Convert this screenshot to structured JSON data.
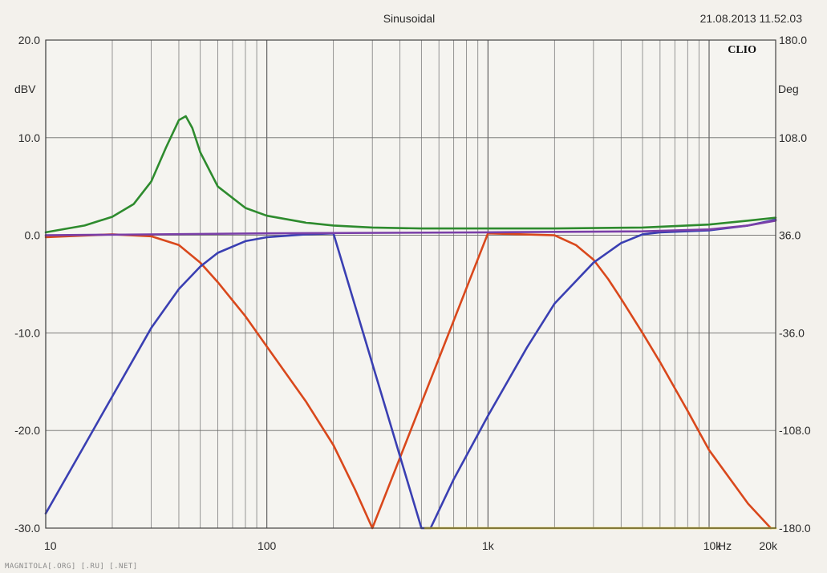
{
  "chart_data": {
    "type": "line",
    "title": "Sinusoidal",
    "timestamp": "21.08.2013 11.52.03",
    "brand": "CLIO",
    "watermark": "MAGNITOLA[.ORG] [.RU] [.NET]",
    "x_scale": "log",
    "xlim": [
      10,
      20000
    ],
    "ylim": [
      -30,
      20
    ],
    "y2lim": [
      -180,
      180
    ],
    "ylabel": "dBV",
    "y2label": "Deg",
    "xunit": "Hz",
    "grid": true,
    "x_tick_labels": [
      {
        "value": 10,
        "label": "10"
      },
      {
        "value": 100,
        "label": "100"
      },
      {
        "value": 1000,
        "label": "1k"
      },
      {
        "value": 10000,
        "label": "10k"
      },
      {
        "value": 20000,
        "label": "20k"
      }
    ],
    "y_ticks": [
      {
        "value": 20,
        "label": "20.0"
      },
      {
        "value": 10,
        "label": "10.0"
      },
      {
        "value": 0,
        "label": "0.0"
      },
      {
        "value": -10,
        "label": "-10.0"
      },
      {
        "value": -20,
        "label": "-20.0"
      },
      {
        "value": -30,
        "label": "-30.0"
      }
    ],
    "y2_ticks": [
      {
        "value": 180,
        "label": "180.0"
      },
      {
        "value": 108,
        "label": "108.0"
      },
      {
        "value": 36,
        "label": "36.0"
      },
      {
        "value": -36,
        "label": "-36.0"
      },
      {
        "value": -108,
        "label": "-108.0"
      },
      {
        "value": -180,
        "label": "-180.0"
      }
    ],
    "series": [
      {
        "color": "#2e8b2e",
        "x": [
          10,
          15,
          20,
          25,
          30,
          35,
          40,
          43,
          46,
          50,
          60,
          80,
          100,
          150,
          200,
          300,
          500,
          1000,
          2000,
          5000,
          10000,
          15000,
          20000
        ],
        "y": [
          0.3,
          1.0,
          1.9,
          3.2,
          5.5,
          9.0,
          11.8,
          12.2,
          11.0,
          8.5,
          5.0,
          2.8,
          2.0,
          1.3,
          1.0,
          0.8,
          0.7,
          0.7,
          0.7,
          0.8,
          1.1,
          1.5,
          1.8
        ]
      },
      {
        "color": "#d9481c",
        "x": [
          10,
          20,
          30,
          40,
          50,
          60,
          80,
          100,
          150,
          200,
          250,
          300,
          1000,
          2000,
          2500,
          3000,
          3500,
          4000,
          5000,
          6000,
          8000,
          10000,
          15000,
          19000
        ],
        "y": [
          -0.2,
          0.1,
          -0.1,
          -1.0,
          -2.8,
          -4.8,
          -8.3,
          -11.4,
          -17.0,
          -21.5,
          -26.0,
          -30.0,
          0.2,
          0.0,
          -1.0,
          -2.5,
          -4.5,
          -6.5,
          -10.0,
          -13.0,
          -18.0,
          -22.0,
          -27.5,
          -30.0
        ]
      },
      {
        "color": "#3a3fb2",
        "x": [
          10,
          15,
          20,
          30,
          40,
          50,
          60,
          80,
          100,
          150,
          200,
          500,
          550,
          700,
          1000,
          1500,
          2000,
          3000,
          4000,
          5000,
          6000,
          10000,
          15000,
          20000
        ],
        "y": [
          -28.5,
          -21.5,
          -16.5,
          -9.5,
          -5.5,
          -3.2,
          -1.8,
          -0.6,
          -0.2,
          0.1,
          0.2,
          -30.0,
          -30.0,
          -25.0,
          -18.5,
          -11.5,
          -7.0,
          -2.8,
          -0.8,
          0.1,
          0.3,
          0.5,
          1.0,
          1.6
        ]
      },
      {
        "color": "#7a3fa8",
        "x": [
          10,
          100,
          1000,
          5000,
          10000,
          15000,
          20000
        ],
        "y": [
          0.0,
          0.2,
          0.3,
          0.4,
          0.6,
          1.0,
          1.5
        ]
      },
      {
        "color": "#e0c62a",
        "x": [
          520,
          1000,
          10000,
          20000
        ],
        "y": [
          -30.0,
          -30.0,
          -30.0,
          -30.0
        ]
      }
    ]
  }
}
